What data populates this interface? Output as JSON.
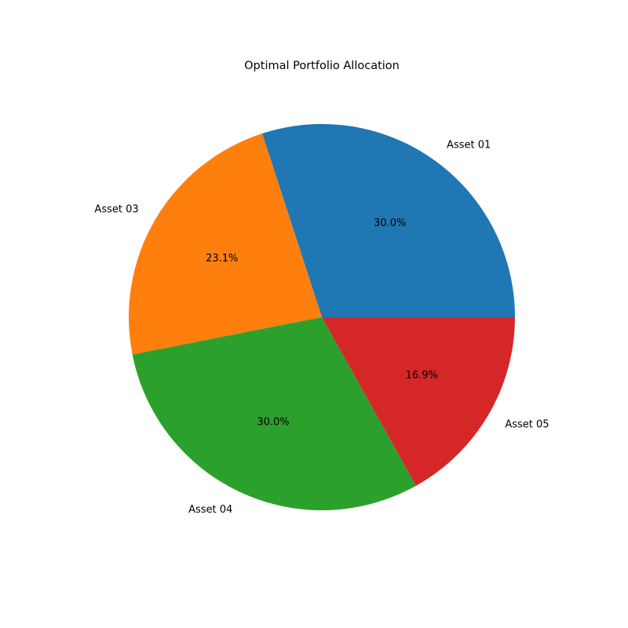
{
  "chart_data": {
    "type": "pie",
    "title": "Optimal Portfolio Allocation",
    "start_angle_deg": 0,
    "direction": "counterclockwise",
    "slices": [
      {
        "label": "Asset 01",
        "value": 30.0,
        "pct_text": "30.0%",
        "color": "#1f77b4"
      },
      {
        "label": "Asset 03",
        "value": 23.1,
        "pct_text": "23.1%",
        "color": "#ff7f0e"
      },
      {
        "label": "Asset 04",
        "value": 30.0,
        "pct_text": "30.0%",
        "color": "#2ca02c"
      },
      {
        "label": "Asset 05",
        "value": 16.9,
        "pct_text": "16.9%",
        "color": "#d62728"
      }
    ]
  }
}
